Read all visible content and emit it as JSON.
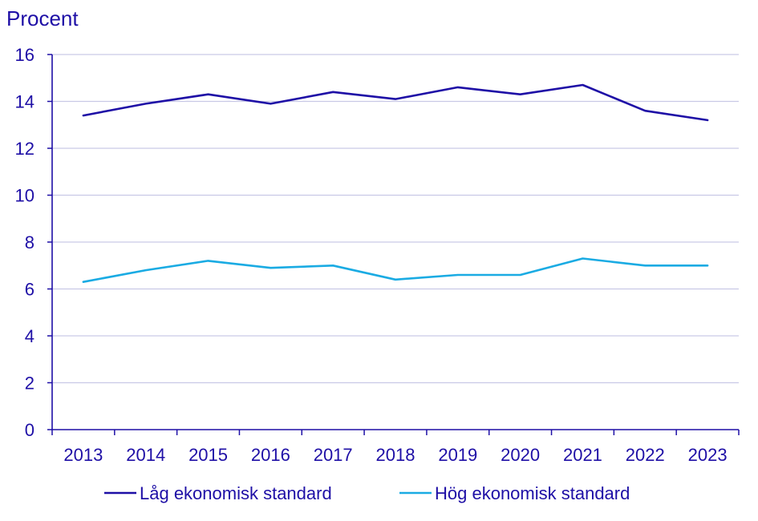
{
  "chart_data": {
    "type": "line",
    "ylabel": "Procent",
    "xlabel": "",
    "ylim": [
      0,
      16
    ],
    "yticks": [
      0,
      2,
      4,
      6,
      8,
      10,
      12,
      14,
      16
    ],
    "grid": true,
    "legend_position": "bottom",
    "categories": [
      "2013",
      "2014",
      "2015",
      "2016",
      "2017",
      "2018",
      "2019",
      "2020",
      "2021",
      "2022",
      "2023"
    ],
    "series": [
      {
        "name": "Låg ekonomisk standard",
        "color": "#1e0fa6",
        "values": [
          13.4,
          13.9,
          14.3,
          13.9,
          14.4,
          14.1,
          14.6,
          14.3,
          14.7,
          13.6,
          13.2
        ]
      },
      {
        "name": "Hög ekonomisk standard",
        "color": "#1aabe3",
        "values": [
          6.3,
          6.8,
          7.2,
          6.9,
          7.0,
          6.4,
          6.6,
          6.6,
          7.3,
          7.0,
          7.0
        ]
      }
    ],
    "colors": {
      "axis": "#1e0fa6",
      "grid": "#c9c9e6",
      "text": "#1e0fa6"
    }
  }
}
